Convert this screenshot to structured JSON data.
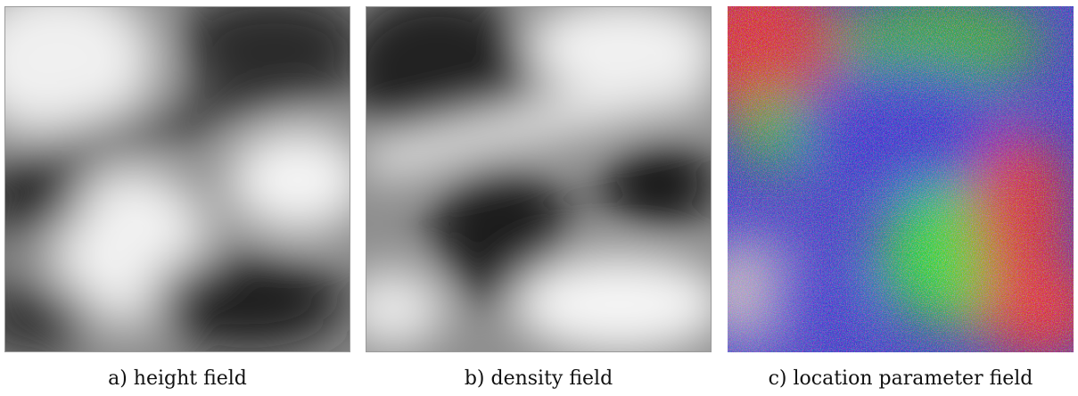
{
  "figure": {
    "panels": [
      {
        "id": "a",
        "caption": "a) height field"
      },
      {
        "id": "b",
        "caption": "b) density field"
      },
      {
        "id": "c",
        "caption": "c) location parameter field"
      }
    ]
  },
  "colors": {
    "background": "#ffffff",
    "border": "#9a9a9a",
    "caption_text": "#111111",
    "field_red": "#e0282a",
    "field_green": "#2cd13a",
    "field_blue": "#3a3ad8"
  }
}
